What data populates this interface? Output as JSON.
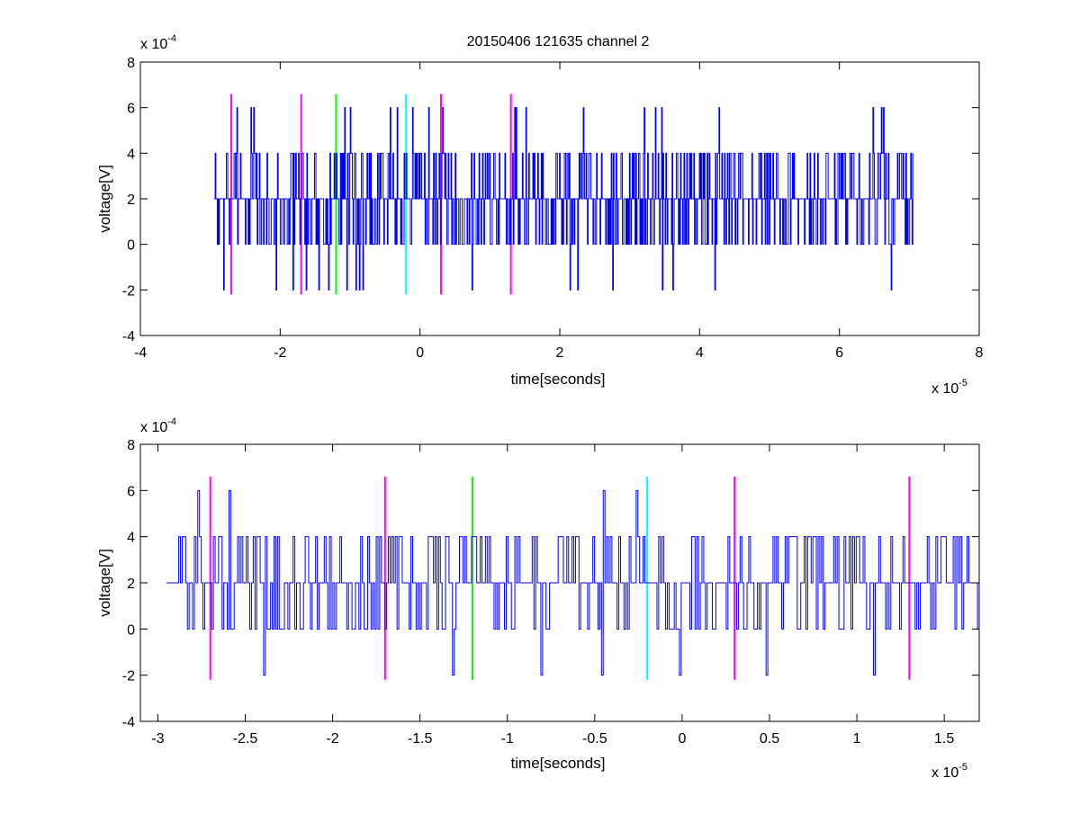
{
  "figure": {
    "title": "20150406 121635 channel 2"
  },
  "colors": {
    "signal": "#0000ff",
    "magenta": "#ff00ff",
    "green": "#00ff00",
    "cyan": "#00ffff",
    "axes": "#000000",
    "background": "#ffffff"
  },
  "chart_data": [
    {
      "type": "line",
      "title": "20150406 121635 channel 2",
      "xlabel": "time[seconds]",
      "ylabel": "voltage[V]",
      "x_exponent_base": "x 10",
      "x_exponent_power": "-5",
      "y_exponent_base": "x 10",
      "y_exponent_power": "-4",
      "xlim": [
        -4,
        8
      ],
      "ylim": [
        -4,
        8
      ],
      "x_ticks": [
        -4,
        -2,
        0,
        2,
        4,
        6,
        8
      ],
      "x_tick_labels": [
        "-4",
        "-2",
        "0",
        "2",
        "4",
        "6",
        "8"
      ],
      "y_ticks": [
        -4,
        -2,
        0,
        2,
        4,
        6,
        8
      ],
      "y_tick_labels": [
        "-4",
        "-2",
        "0",
        "2",
        "4",
        "6",
        "8"
      ],
      "grid": false,
      "signal": {
        "x_start": -2.95,
        "x_end": 7.05,
        "n": 1000,
        "seed": 7,
        "quantum": 2,
        "noise": 1.3,
        "min": -2,
        "max": 6
      },
      "markers": [
        {
          "x": -2.7,
          "color": "magenta"
        },
        {
          "x": -1.7,
          "color": "magenta"
        },
        {
          "x": -1.2,
          "color": "green"
        },
        {
          "x": -0.2,
          "color": "cyan"
        },
        {
          "x": 0.3,
          "color": "magenta"
        },
        {
          "x": 1.3,
          "color": "magenta"
        }
      ],
      "marker_range": [
        -2.2,
        6.6
      ]
    },
    {
      "type": "line",
      "title": "",
      "xlabel": "time[seconds]",
      "ylabel": "voltage[V]",
      "x_exponent_base": "x 10",
      "x_exponent_power": "-5",
      "y_exponent_base": "x 10",
      "y_exponent_power": "-4",
      "xlim": [
        -3.1,
        1.7
      ],
      "ylim": [
        -4,
        8
      ],
      "x_ticks": [
        -3,
        -2.5,
        -2,
        -1.5,
        -1,
        -0.5,
        0,
        0.5,
        1,
        1.5
      ],
      "x_tick_labels": [
        "-3",
        "-2.5",
        "-2",
        "-1.5",
        "-1",
        "-0.5",
        "0",
        "0.5",
        "1",
        "1.5"
      ],
      "y_ticks": [
        -4,
        -2,
        0,
        2,
        4,
        6,
        8
      ],
      "y_tick_labels": [
        "-4",
        "-2",
        "0",
        "2",
        "4",
        "6",
        "8"
      ],
      "grid": false,
      "signal": {
        "x_start": -2.95,
        "x_end": 1.7,
        "n": 470,
        "seed": 13,
        "quantum": 2,
        "noise": 1.2,
        "min": -2,
        "max": 6
      },
      "markers": [
        {
          "x": -2.7,
          "color": "magenta"
        },
        {
          "x": -1.7,
          "color": "magenta"
        },
        {
          "x": -1.2,
          "color": "green"
        },
        {
          "x": -0.2,
          "color": "cyan"
        },
        {
          "x": 0.3,
          "color": "magenta"
        },
        {
          "x": 1.3,
          "color": "magenta"
        }
      ],
      "marker_range": [
        -2.2,
        6.6
      ]
    }
  ]
}
